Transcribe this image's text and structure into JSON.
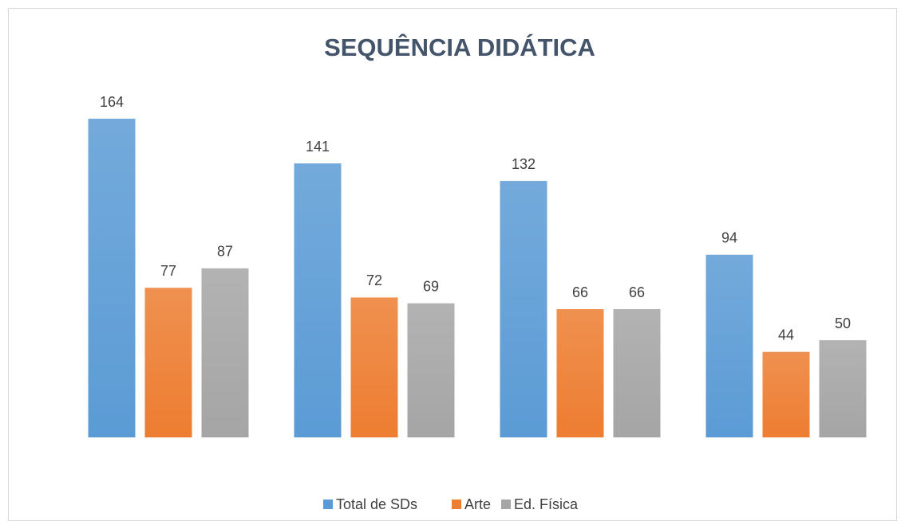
{
  "chart_data": {
    "type": "bar",
    "title": "SEQUÊNCIA DIDÁTICA",
    "categories": [
      null,
      null,
      null,
      null
    ],
    "series": [
      {
        "name": "Total de SDs",
        "color": "#5b9bd5",
        "values": [
          164,
          141,
          132,
          94
        ]
      },
      {
        "name": "Arte",
        "color": "#ed7d31",
        "values": [
          77,
          72,
          66,
          44
        ]
      },
      {
        "name": "Ed. Física",
        "color": "#a5a5a5",
        "values": [
          87,
          69,
          66,
          50
        ]
      }
    ],
    "ylim": [
      0,
      180
    ],
    "legend": "bottom"
  }
}
